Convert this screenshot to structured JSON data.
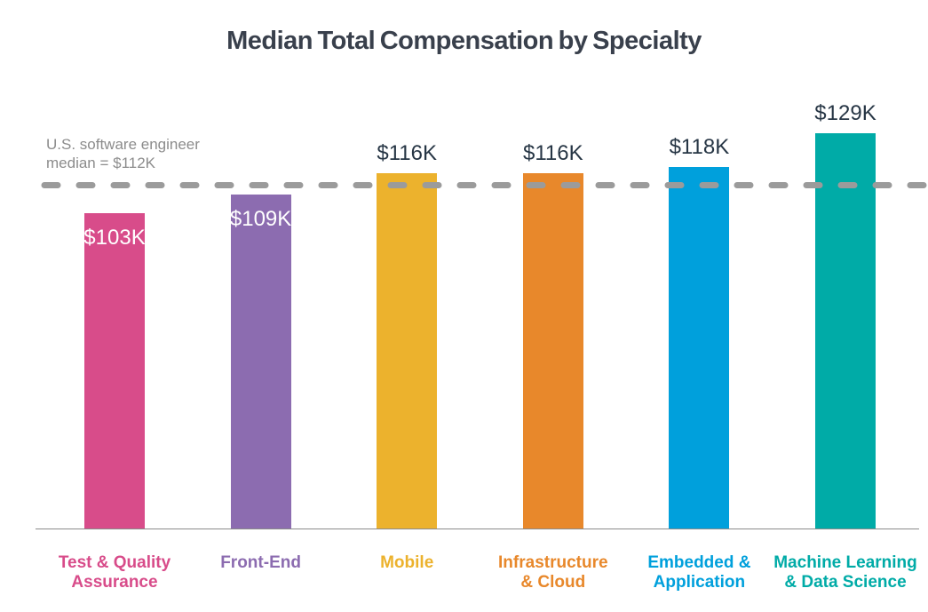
{
  "chart_data": {
    "type": "bar",
    "title": "Median Total Compensation by Specialty",
    "xlabel": "",
    "ylabel": "",
    "ylim": [
      0,
      140
    ],
    "grid": false,
    "legend": "none",
    "categories": [
      "Test & Quality Assurance",
      "Front-End",
      "Mobile",
      "Infrastructure & Cloud",
      "Embedded & Application",
      "Machine Learning & Data Science"
    ],
    "category_label_lines": [
      [
        "Test & Quality",
        "Assurance"
      ],
      [
        "Front-End"
      ],
      [
        "Mobile"
      ],
      [
        "Infrastructure",
        "& Cloud"
      ],
      [
        "Embedded &",
        "Application"
      ],
      [
        "Machine Learning",
        "& Data Science"
      ]
    ],
    "values": [
      103,
      109,
      116,
      116,
      118,
      129
    ],
    "value_labels": [
      "$103K",
      "$109K",
      "$116K",
      "$116K",
      "$118K",
      "$129K"
    ],
    "value_label_placement": [
      "inside",
      "inside",
      "above",
      "above",
      "above",
      "above"
    ],
    "bar_colors": [
      "#d84c8a",
      "#8c6cb0",
      "#ecb22d",
      "#e8882b",
      "#00a0dc",
      "#00aba7"
    ],
    "reference_line": {
      "value": 112,
      "annotation_line1": "U.S. software engineer",
      "annotation_line2": "median = $112K",
      "color": "#9b9b9b"
    }
  },
  "styles": {
    "title_color": "#39404c",
    "value_label_above_color": "#273645",
    "value_label_inside_color": "#ffffff",
    "annotation_color": "#8c8c8c",
    "axis_line_color": "#8a8a8a",
    "background": "#ffffff"
  }
}
